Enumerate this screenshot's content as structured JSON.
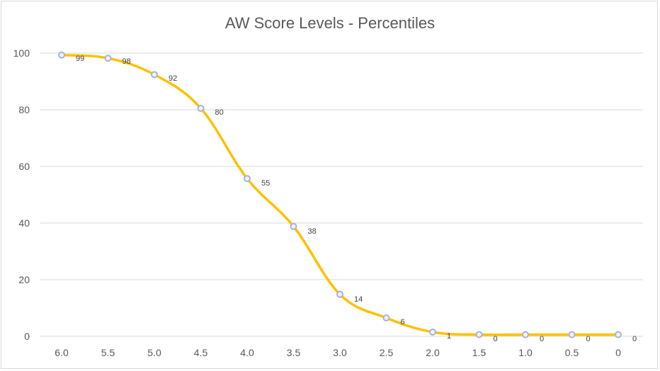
{
  "chart_data": {
    "type": "line",
    "title": "AW Score Levels - Percentiles",
    "xlabel": "",
    "ylabel": "",
    "categories": [
      "6.0",
      "5.5",
      "5.0",
      "4.5",
      "4.0",
      "3.5",
      "3.0",
      "2.5",
      "2.0",
      "1.5",
      "1.0",
      "0.5",
      "0"
    ],
    "series": [
      {
        "values": [
          99,
          98,
          92,
          80,
          55,
          38,
          14,
          6,
          1,
          0,
          0,
          0,
          0
        ],
        "marker_values": [
          99.3,
          98.2,
          92.4,
          80.5,
          55.7,
          38.8,
          14.8,
          6.5,
          1.5,
          0.6,
          0.6,
          0.6,
          0.6
        ],
        "data_labels": [
          "99",
          "98",
          "92",
          "80",
          "55",
          "38",
          "14",
          "6",
          "1",
          "0",
          "0",
          "0",
          "0"
        ],
        "color": "#FFC000",
        "marker_color": "#A5B4D6",
        "smooth": true
      }
    ],
    "ylim": [
      0,
      100
    ],
    "yticks": [
      0,
      20,
      40,
      60,
      80,
      100
    ],
    "grid": true,
    "gridline_color": "#D9D9D9",
    "legend": "none"
  }
}
